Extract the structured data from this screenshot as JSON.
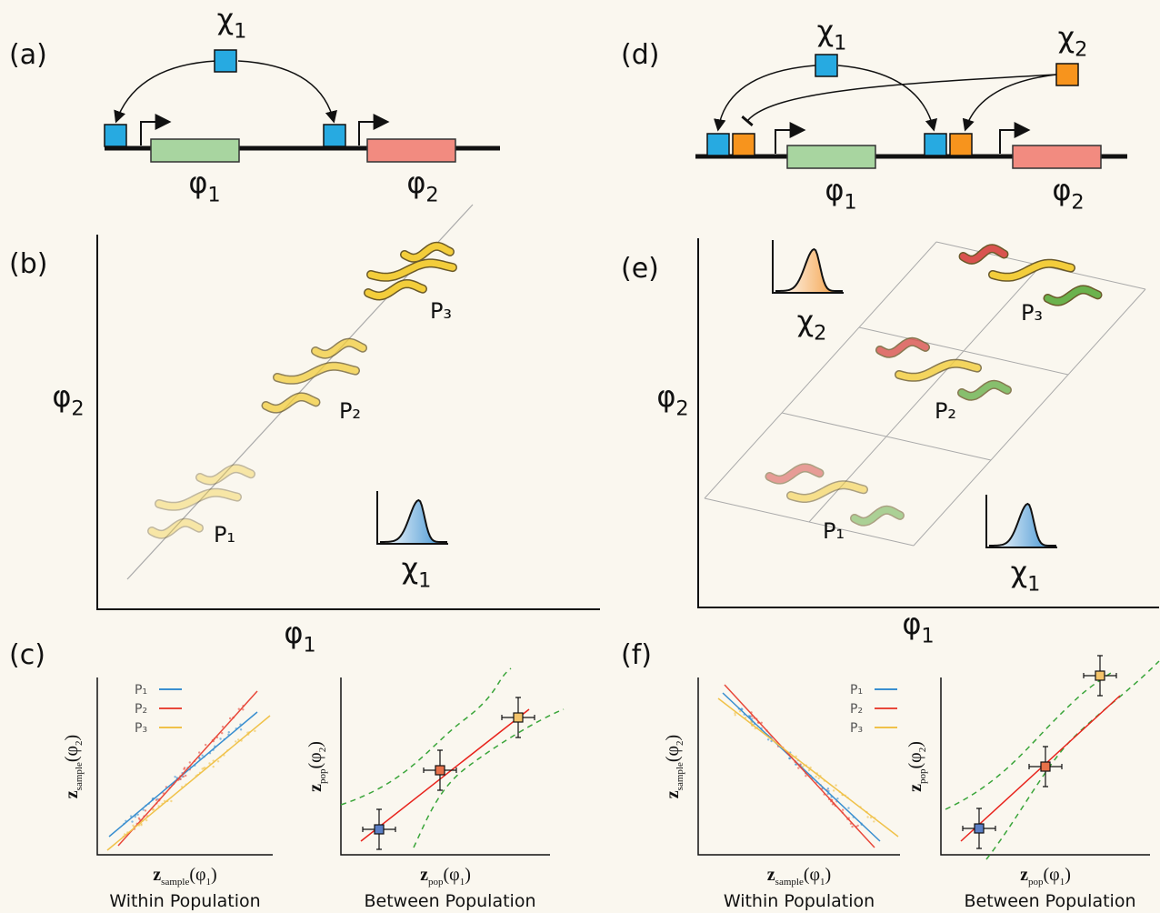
{
  "a": {
    "label": "(a)",
    "regulator": [
      "χ",
      "1"
    ],
    "genes": [
      [
        "φ",
        "1"
      ],
      [
        "φ",
        "2"
      ]
    ]
  },
  "b": {
    "label": "(b)",
    "x_axis": [
      "φ",
      "1"
    ],
    "y_axis": [
      "φ",
      "2"
    ],
    "populations": [
      "P₁",
      "P₂",
      "P₃"
    ],
    "distribution": [
      "χ",
      "1"
    ]
  },
  "c": {
    "label": "(c)",
    "within": {
      "legend": [
        "P₁",
        "P₂",
        "P₃"
      ],
      "x_axis": [
        "z",
        "sample",
        "(φ",
        "1",
        ")"
      ],
      "y_axis": [
        "z",
        "sample",
        "(φ",
        "2",
        ")"
      ],
      "caption": "Within Population"
    },
    "between": {
      "x_axis": [
        "z",
        "pop",
        "(φ",
        "1",
        ")"
      ],
      "y_axis": [
        "z",
        "pop",
        "(φ",
        "2",
        ")"
      ],
      "caption": "Between Population"
    }
  },
  "d": {
    "label": "(d)",
    "regulators": [
      [
        "χ",
        "1"
      ],
      [
        "χ",
        "2"
      ]
    ],
    "genes": [
      [
        "φ",
        "1"
      ],
      [
        "φ",
        "2"
      ]
    ]
  },
  "e": {
    "label": "(e)",
    "x_axis": [
      "φ",
      "1"
    ],
    "y_axis": [
      "φ",
      "2"
    ],
    "populations": [
      "P₁",
      "P₂",
      "P₃"
    ],
    "distributions": [
      [
        "χ",
        "2"
      ],
      [
        "χ",
        "1"
      ]
    ]
  },
  "f": {
    "label": "(f)",
    "within": {
      "legend": [
        "P₁",
        "P₂",
        "P₃"
      ],
      "x_axis": [
        "z",
        "sample",
        "(φ",
        "1",
        ")"
      ],
      "y_axis": [
        "z",
        "sample",
        "(φ",
        "2",
        ")"
      ],
      "caption": "Within Population"
    },
    "between": {
      "x_axis": [
        "z",
        "pop",
        "(φ",
        "1",
        ")"
      ],
      "y_axis": [
        "z",
        "pop",
        "(φ",
        "2",
        ")"
      ],
      "caption": "Between Population"
    }
  }
}
